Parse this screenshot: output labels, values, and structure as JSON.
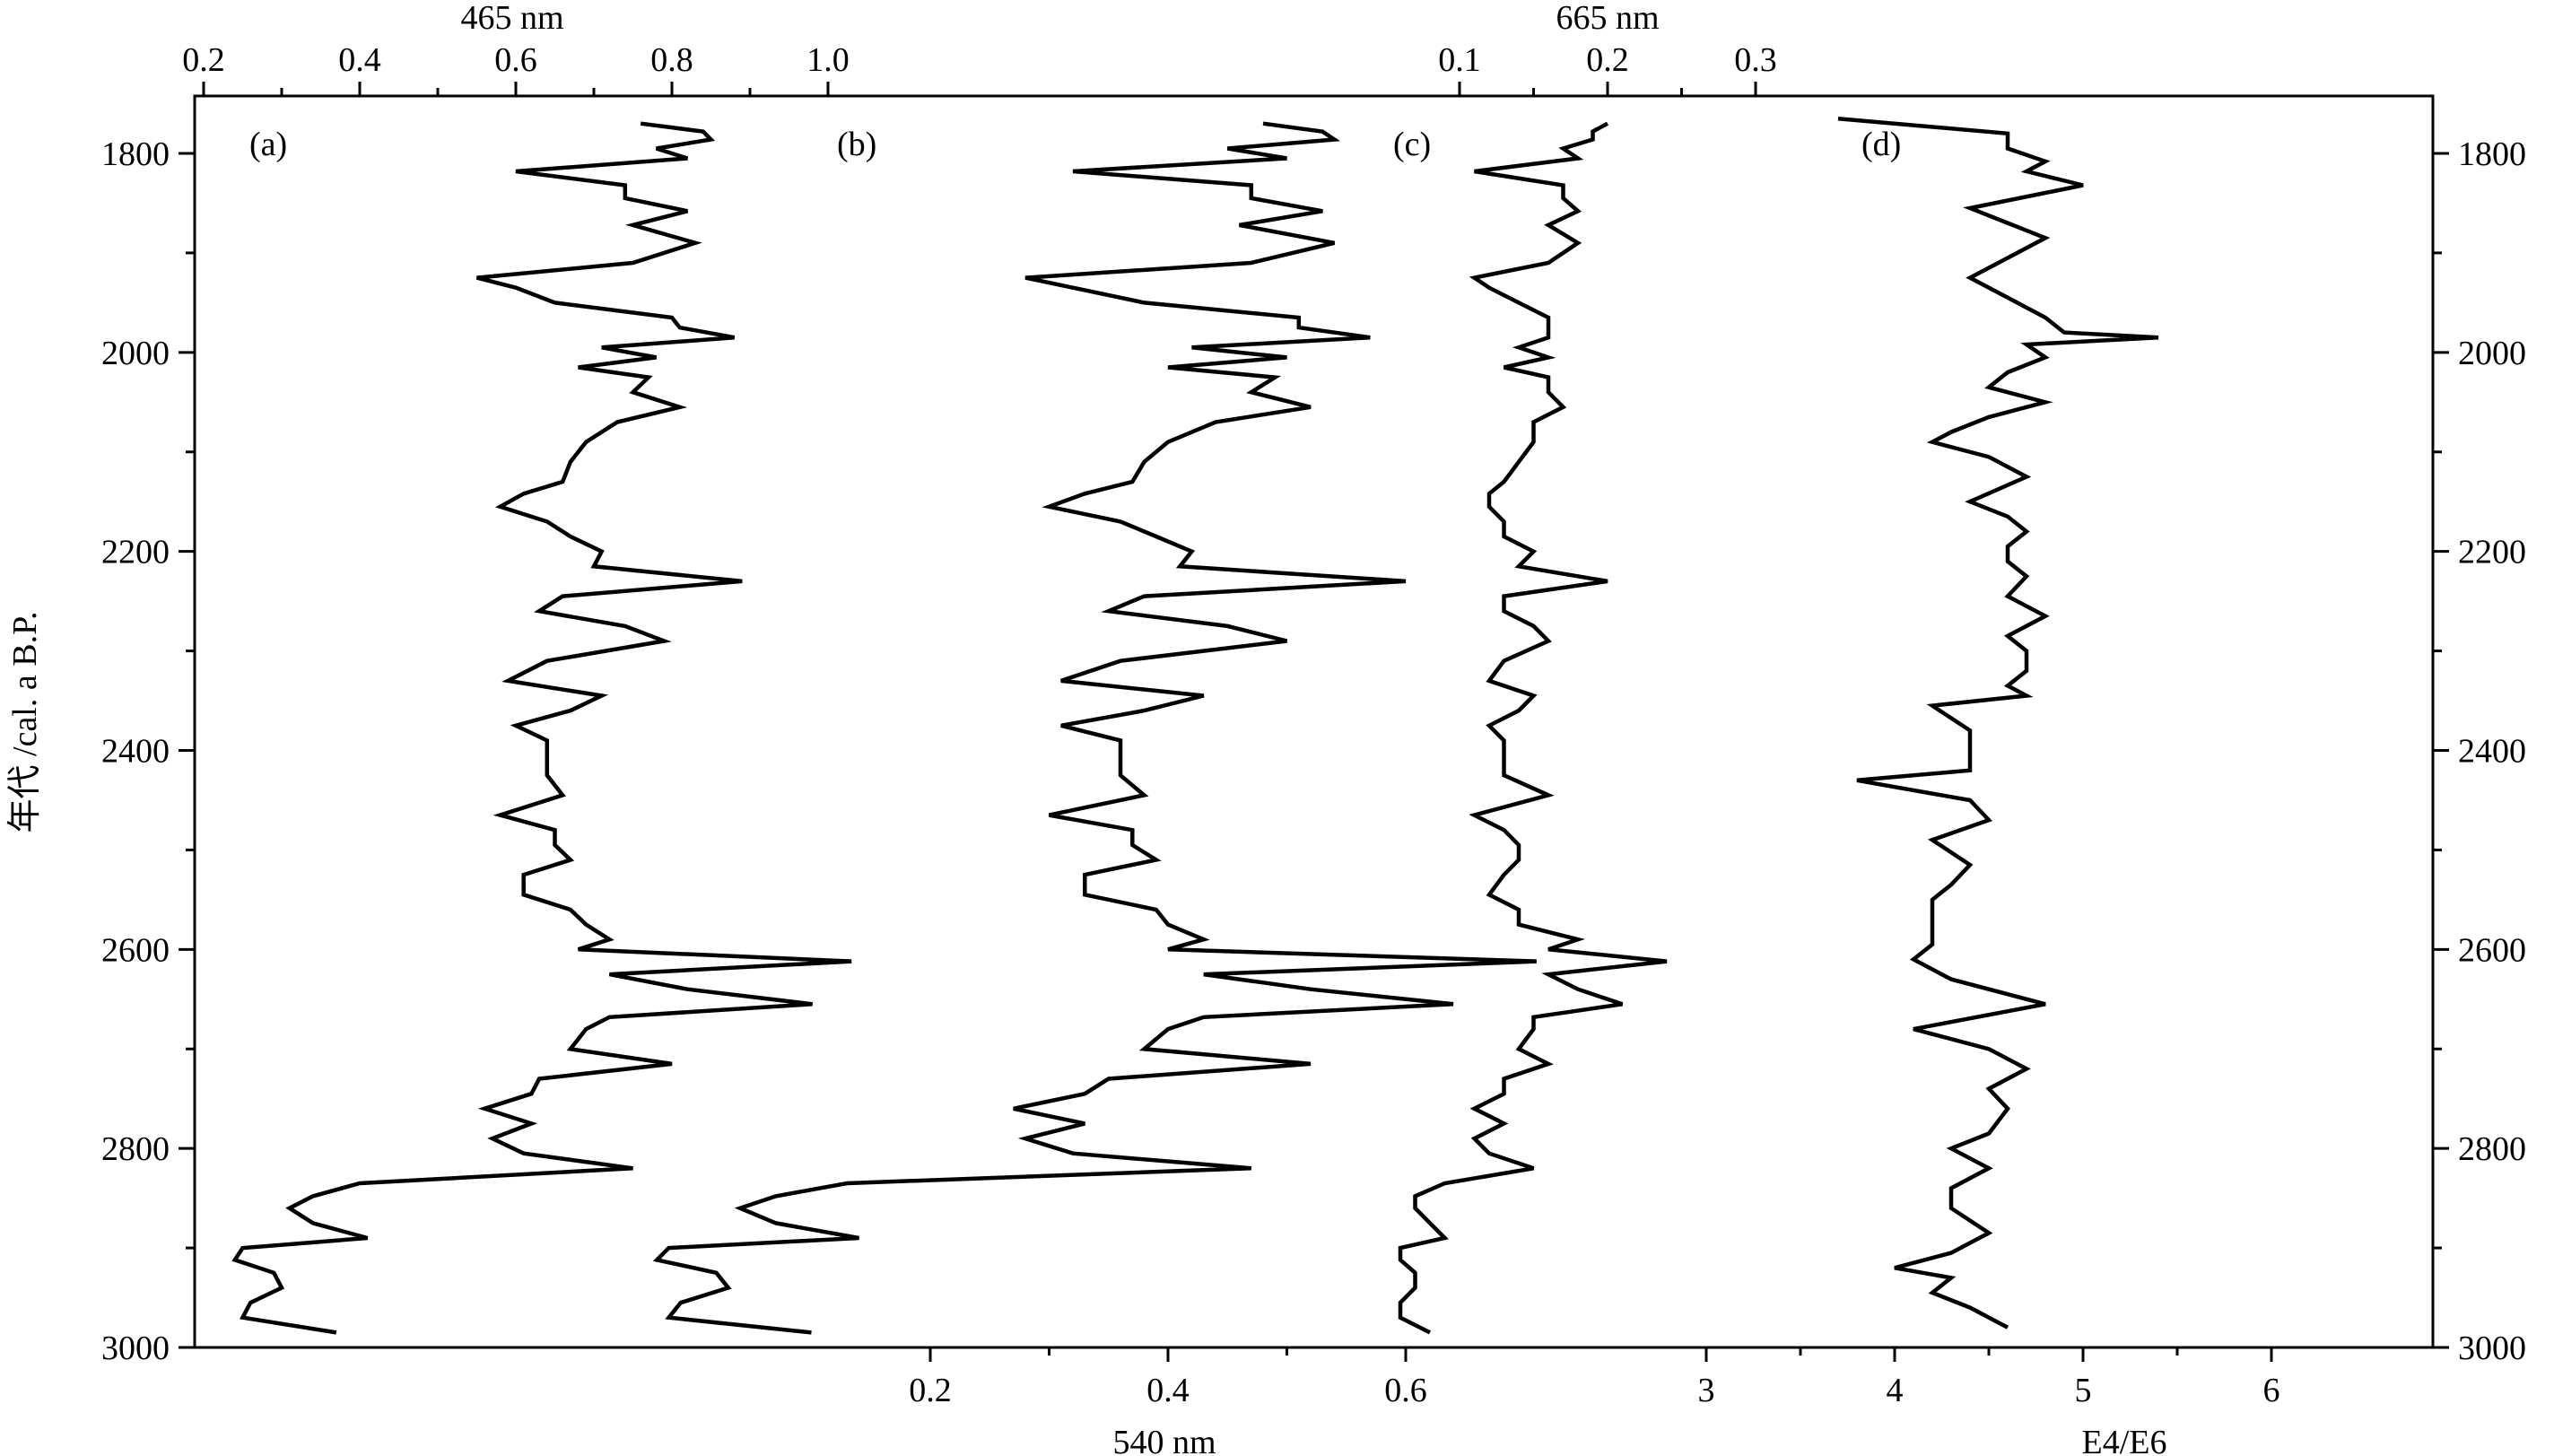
{
  "chart_data": {
    "type": "line",
    "orientation": "vertical-profile",
    "y_axis": {
      "label": "年代 /cal. a B.P.",
      "ylim": [
        3000,
        1750
      ],
      "ticks": [
        1800,
        2000,
        2200,
        2400,
        2600,
        2800,
        3000
      ],
      "tick_labels": [
        "1800",
        "2000",
        "2200",
        "2400",
        "2600",
        "2800",
        "3000"
      ]
    },
    "axes": {
      "top_465": {
        "title": "465 nm",
        "ticks": [
          0.2,
          0.4,
          0.6,
          0.8,
          1.0
        ],
        "tick_labels": [
          "0.2",
          "0.4",
          "0.6",
          "0.8",
          "1.0"
        ]
      },
      "bottom_540": {
        "title": "540 nm",
        "ticks": [
          0.2,
          0.4,
          0.6
        ],
        "tick_labels": [
          "0.2",
          "0.4",
          "0.6"
        ]
      },
      "top_665": {
        "title": "665 nm",
        "ticks": [
          0.1,
          0.2,
          0.3
        ],
        "tick_labels": [
          "0.1",
          "0.2",
          "0.3"
        ]
      },
      "bottom_e4e6": {
        "title": "E4/E6",
        "ticks": [
          3,
          4,
          5,
          6
        ],
        "tick_labels": [
          "3",
          "4",
          "5",
          "6"
        ]
      }
    },
    "series": [
      {
        "panel": "(a)",
        "axis": "top_465",
        "ages": [
          1770,
          1778,
          1786,
          1795,
          1805,
          1818,
          1832,
          1845,
          1858,
          1872,
          1890,
          1910,
          1925,
          1935,
          1950,
          1965,
          1975,
          1985,
          1995,
          2005,
          2015,
          2025,
          2040,
          2055,
          2070,
          2090,
          2110,
          2130,
          2142,
          2155,
          2170,
          2185,
          2200,
          2215,
          2230,
          2245,
          2260,
          2275,
          2290,
          2310,
          2330,
          2345,
          2360,
          2375,
          2390,
          2405,
          2425,
          2445,
          2465,
          2480,
          2495,
          2510,
          2525,
          2545,
          2560,
          2575,
          2590,
          2600,
          2612,
          2625,
          2640,
          2655,
          2668,
          2680,
          2700,
          2715,
          2730,
          2745,
          2760,
          2775,
          2790,
          2805,
          2820,
          2835,
          2848,
          2860,
          2875,
          2890,
          2900,
          2912,
          2925,
          2940,
          2955,
          2970,
          2985
        ],
        "values": [
          0.76,
          0.84,
          0.85,
          0.78,
          0.82,
          0.6,
          0.74,
          0.74,
          0.82,
          0.75,
          0.83,
          0.75,
          0.55,
          0.6,
          0.65,
          0.8,
          0.81,
          0.88,
          0.71,
          0.78,
          0.68,
          0.77,
          0.75,
          0.81,
          0.73,
          0.69,
          0.67,
          0.66,
          0.61,
          0.58,
          0.64,
          0.67,
          0.71,
          0.7,
          0.89,
          0.66,
          0.63,
          0.74,
          0.79,
          0.64,
          0.59,
          0.71,
          0.67,
          0.6,
          0.64,
          0.64,
          0.64,
          0.66,
          0.58,
          0.65,
          0.65,
          0.67,
          0.61,
          0.61,
          0.67,
          0.69,
          0.72,
          0.68,
          1.03,
          0.72,
          0.82,
          0.98,
          0.72,
          0.69,
          0.67,
          0.8,
          0.63,
          0.62,
          0.56,
          0.62,
          0.57,
          0.61,
          0.75,
          0.4,
          0.34,
          0.31,
          0.34,
          0.41,
          0.25,
          0.24,
          0.29,
          0.3,
          0.26,
          0.25,
          0.37
        ]
      },
      {
        "panel": "(b)",
        "axis": "bottom_540",
        "ages": [
          1770,
          1778,
          1786,
          1795,
          1805,
          1818,
          1832,
          1845,
          1858,
          1872,
          1890,
          1910,
          1925,
          1935,
          1950,
          1965,
          1975,
          1985,
          1995,
          2005,
          2015,
          2025,
          2040,
          2055,
          2070,
          2090,
          2110,
          2130,
          2142,
          2155,
          2170,
          2185,
          2200,
          2215,
          2230,
          2245,
          2260,
          2275,
          2290,
          2310,
          2330,
          2345,
          2360,
          2375,
          2390,
          2405,
          2425,
          2445,
          2465,
          2480,
          2495,
          2510,
          2525,
          2545,
          2560,
          2575,
          2590,
          2600,
          2612,
          2625,
          2640,
          2655,
          2668,
          2680,
          2700,
          2715,
          2730,
          2745,
          2760,
          2775,
          2790,
          2805,
          2820,
          2835,
          2848,
          2860,
          2875,
          2890,
          2900,
          2912,
          2925,
          2940,
          2955,
          2970,
          2985
        ],
        "values": [
          0.48,
          0.53,
          0.54,
          0.45,
          0.5,
          0.32,
          0.47,
          0.47,
          0.53,
          0.46,
          0.54,
          0.47,
          0.28,
          0.32,
          0.38,
          0.51,
          0.51,
          0.57,
          0.42,
          0.5,
          0.4,
          0.49,
          0.47,
          0.52,
          0.44,
          0.4,
          0.38,
          0.37,
          0.33,
          0.3,
          0.36,
          0.39,
          0.42,
          0.41,
          0.6,
          0.38,
          0.35,
          0.45,
          0.5,
          0.36,
          0.31,
          0.43,
          0.38,
          0.31,
          0.36,
          0.36,
          0.36,
          0.38,
          0.3,
          0.37,
          0.37,
          0.39,
          0.33,
          0.33,
          0.39,
          0.4,
          0.43,
          0.4,
          0.71,
          0.43,
          0.52,
          0.64,
          0.43,
          0.4,
          0.38,
          0.52,
          0.35,
          0.33,
          0.27,
          0.33,
          0.28,
          0.32,
          0.47,
          0.13,
          0.07,
          0.04,
          0.07,
          0.14,
          -0.02,
          -0.03,
          0.02,
          0.03,
          -0.01,
          -0.02,
          0.1
        ]
      },
      {
        "panel": "(c)",
        "axis": "top_665",
        "ages": [
          1770,
          1778,
          1786,
          1795,
          1805,
          1818,
          1832,
          1845,
          1858,
          1872,
          1890,
          1910,
          1925,
          1935,
          1950,
          1965,
          1975,
          1985,
          1995,
          2005,
          2015,
          2025,
          2040,
          2055,
          2070,
          2090,
          2110,
          2130,
          2142,
          2155,
          2170,
          2185,
          2200,
          2215,
          2230,
          2245,
          2260,
          2275,
          2290,
          2310,
          2330,
          2345,
          2360,
          2375,
          2390,
          2405,
          2425,
          2445,
          2465,
          2480,
          2495,
          2510,
          2525,
          2545,
          2560,
          2575,
          2590,
          2600,
          2612,
          2625,
          2640,
          2655,
          2668,
          2680,
          2700,
          2715,
          2730,
          2745,
          2760,
          2775,
          2790,
          2805,
          2820,
          2835,
          2848,
          2860,
          2875,
          2890,
          2900,
          2912,
          2925,
          2940,
          2955,
          2970,
          2985
        ],
        "values": [
          0.2,
          0.19,
          0.19,
          0.17,
          0.18,
          0.11,
          0.17,
          0.17,
          0.18,
          0.16,
          0.18,
          0.16,
          0.11,
          0.12,
          0.14,
          0.16,
          0.16,
          0.16,
          0.14,
          0.16,
          0.13,
          0.16,
          0.16,
          0.17,
          0.15,
          0.15,
          0.14,
          0.13,
          0.12,
          0.12,
          0.13,
          0.13,
          0.15,
          0.14,
          0.2,
          0.13,
          0.13,
          0.15,
          0.16,
          0.13,
          0.12,
          0.15,
          0.14,
          0.12,
          0.13,
          0.13,
          0.13,
          0.16,
          0.11,
          0.13,
          0.14,
          0.14,
          0.13,
          0.12,
          0.14,
          0.14,
          0.18,
          0.16,
          0.24,
          0.16,
          0.18,
          0.21,
          0.15,
          0.15,
          0.14,
          0.16,
          0.13,
          0.13,
          0.11,
          0.13,
          0.11,
          0.12,
          0.15,
          0.09,
          0.07,
          0.07,
          0.08,
          0.09,
          0.06,
          0.06,
          0.07,
          0.07,
          0.06,
          0.06,
          0.08
        ]
      },
      {
        "panel": "(d)",
        "axis": "bottom_e4e6",
        "ages": [
          1765,
          1780,
          1795,
          1808,
          1818,
          1832,
          1855,
          1870,
          1885,
          1905,
          1925,
          1945,
          1965,
          1980,
          1985,
          1992,
          2005,
          2020,
          2035,
          2050,
          2065,
          2080,
          2090,
          2105,
          2125,
          2150,
          2165,
          2180,
          2195,
          2210,
          2225,
          2245,
          2265,
          2285,
          2300,
          2320,
          2335,
          2345,
          2355,
          2380,
          2400,
          2420,
          2430,
          2450,
          2470,
          2490,
          2515,
          2535,
          2550,
          2570,
          2595,
          2610,
          2630,
          2655,
          2680,
          2700,
          2720,
          2740,
          2760,
          2785,
          2800,
          2820,
          2840,
          2860,
          2885,
          2905,
          2920,
          2930,
          2945,
          2960,
          2980
        ],
        "values": [
          3.7,
          4.6,
          4.6,
          4.8,
          4.7,
          5.0,
          4.4,
          4.6,
          4.8,
          4.6,
          4.4,
          4.6,
          4.8,
          4.9,
          5.4,
          4.7,
          4.8,
          4.6,
          4.5,
          4.8,
          4.5,
          4.3,
          4.2,
          4.5,
          4.7,
          4.4,
          4.6,
          4.7,
          4.6,
          4.6,
          4.7,
          4.6,
          4.8,
          4.6,
          4.7,
          4.7,
          4.6,
          4.7,
          4.2,
          4.4,
          4.4,
          4.4,
          3.8,
          4.4,
          4.5,
          4.2,
          4.4,
          4.3,
          4.2,
          4.2,
          4.2,
          4.1,
          4.3,
          4.8,
          4.1,
          4.5,
          4.7,
          4.5,
          4.6,
          4.5,
          4.3,
          4.5,
          4.3,
          4.3,
          4.5,
          4.3,
          4.0,
          4.3,
          4.2,
          4.4,
          4.6
        ]
      }
    ]
  }
}
